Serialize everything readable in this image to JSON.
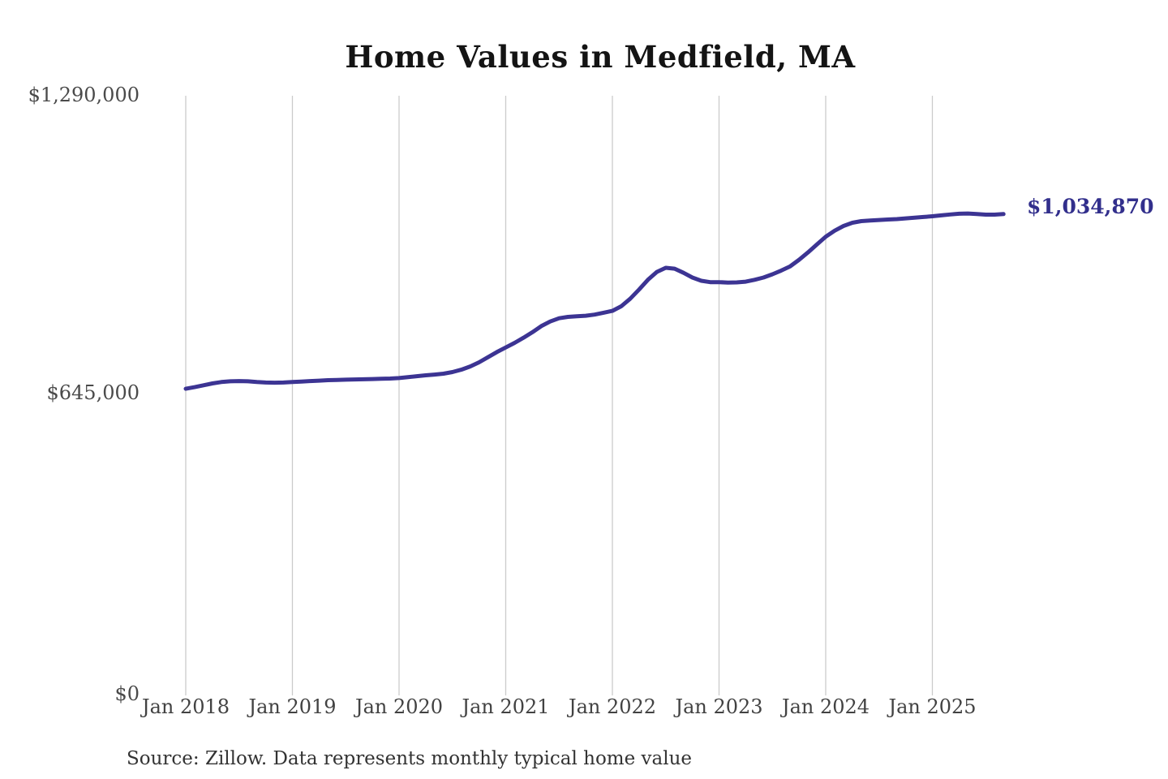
{
  "chart": {
    "title": "Home Values in Medfield, MA",
    "end_label": "$1,034,870",
    "source_note": "Source: Zillow. Data represents monthly typical home value",
    "colors": {
      "line": "#3c3493",
      "end_label": "#322f8c",
      "gridline": "#cbcbcb",
      "axis_text": "#424242",
      "title_text": "#141414"
    },
    "chart_data": {
      "type": "line",
      "title": "Home Values in Medfield, MA",
      "xlabel": "",
      "ylabel": "",
      "x_start": "Jan 2018",
      "x_interval": "monthly",
      "x_tick_labels": [
        "Jan 2018",
        "Jan 2019",
        "Jan 2020",
        "Jan 2021",
        "Jan 2022",
        "Jan 2023",
        "Jan 2024",
        "Jan 2025"
      ],
      "y_ticks": [
        0,
        645000,
        1290000
      ],
      "y_tick_labels": [
        "$0",
        "$645,000",
        "$1,290,000"
      ],
      "ylim": [
        0,
        1290000
      ],
      "grid": "vertical-only",
      "legend": "none",
      "latest_value": 1034870,
      "latest_value_label": "$1,034,870",
      "values": [
        658000,
        661500,
        665500,
        669500,
        672500,
        674000,
        674500,
        674000,
        672500,
        671500,
        671000,
        671500,
        672500,
        673500,
        674500,
        675500,
        676500,
        677000,
        677500,
        678000,
        678500,
        679000,
        679500,
        680000,
        681000,
        683000,
        685000,
        687000,
        688500,
        690500,
        694000,
        699000,
        706000,
        715000,
        726000,
        737000,
        747000,
        757000,
        768000,
        780000,
        793000,
        803000,
        810000,
        813000,
        814500,
        815500,
        818000,
        822000,
        826000,
        836000,
        852000,
        872000,
        893000,
        910000,
        919000,
        917000,
        908000,
        898000,
        891000,
        888000,
        888000,
        887000,
        887500,
        889000,
        893000,
        898000,
        905000,
        913000,
        922000,
        936000,
        952000,
        969000,
        986000,
        999000,
        1009000,
        1016000,
        1019500,
        1021000,
        1022000,
        1023000,
        1024000,
        1025500,
        1027000,
        1028500,
        1030000,
        1032000,
        1034000,
        1035500,
        1036000,
        1035000,
        1033500,
        1033500,
        1034870
      ]
    }
  }
}
